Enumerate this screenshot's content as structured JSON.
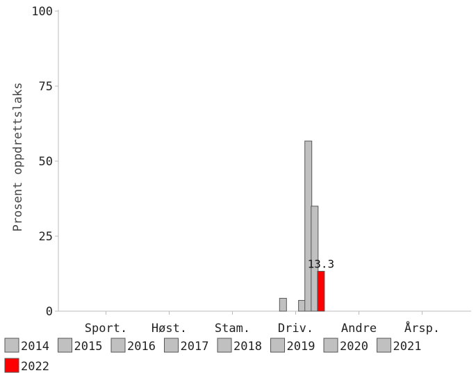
{
  "chart_data": {
    "type": "bar",
    "title": "",
    "xlabel": "",
    "ylabel": "Prosent oppdrettslaks",
    "ylim": [
      0,
      100
    ],
    "yticks": [
      0,
      25,
      50,
      75,
      100
    ],
    "categories": [
      "Sport.",
      "Høst.",
      "Stam.",
      "Driv.",
      "Andre",
      "Årsp."
    ],
    "series": [
      {
        "name": "2014",
        "color": "#c0c0c0",
        "values": [
          null,
          null,
          null,
          null,
          null,
          null
        ]
      },
      {
        "name": "2015",
        "color": "#c0c0c0",
        "values": [
          null,
          null,
          null,
          null,
          null,
          null
        ]
      },
      {
        "name": "2016",
        "color": "#c0c0c0",
        "values": [
          null,
          null,
          null,
          4.3,
          null,
          null
        ]
      },
      {
        "name": "2017",
        "color": "#c0c0c0",
        "values": [
          null,
          null,
          null,
          null,
          null,
          null
        ]
      },
      {
        "name": "2018",
        "color": "#c0c0c0",
        "values": [
          null,
          null,
          null,
          null,
          null,
          null
        ]
      },
      {
        "name": "2019",
        "color": "#c0c0c0",
        "values": [
          null,
          null,
          null,
          3.6,
          null,
          null
        ]
      },
      {
        "name": "2020",
        "color": "#c0c0c0",
        "values": [
          null,
          null,
          null,
          56.7,
          null,
          null
        ]
      },
      {
        "name": "2021",
        "color": "#c0c0c0",
        "values": [
          null,
          null,
          null,
          35.0,
          null,
          null
        ]
      },
      {
        "name": "2022",
        "color": "#ff0000",
        "values": [
          null,
          null,
          null,
          13.3,
          null,
          null
        ]
      }
    ],
    "data_labels": [
      {
        "series": "2022",
        "category": "Driv.",
        "text": "13.3"
      }
    ],
    "grid": false,
    "legend_position": "bottom"
  }
}
